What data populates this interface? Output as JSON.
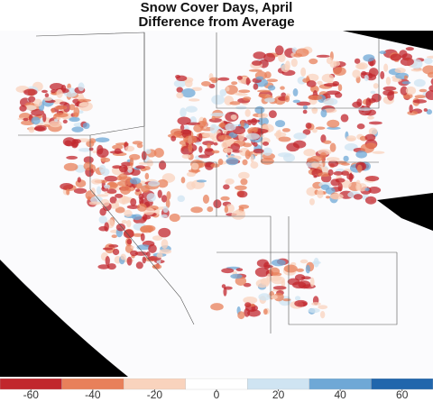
{
  "title": "Snow Cover Days, April",
  "subtitle": "Difference from Average",
  "colorbar": {
    "bins": [
      -70,
      -50,
      -30,
      -10,
      10,
      30,
      50,
      70
    ],
    "colors": [
      "#c1272d",
      "#e8805a",
      "#f9d3bd",
      "#ffffff",
      "#cfe4f2",
      "#6fa8d6",
      "#2166ac"
    ],
    "ticks": [
      -60,
      -40,
      -20,
      0,
      20,
      40,
      60
    ]
  }
}
